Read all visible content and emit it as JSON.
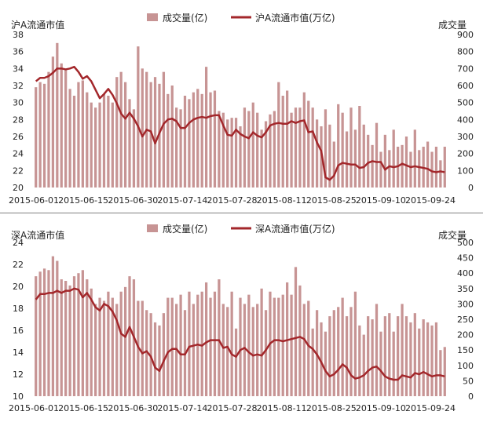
{
  "colors": {
    "bar": "#c79494",
    "line": "#a3272b",
    "divider": "#7f7f7f",
    "text": "#222222"
  },
  "chart_data": [
    {
      "type": "bar+line",
      "left_axis_title": "沪A流通市值",
      "right_axis_title": "成交量",
      "legend": {
        "bar": "成交量(亿)",
        "line": "沪A流通市值(万亿)"
      },
      "legend_position": "top-center",
      "ylim_left": [
        20,
        38
      ],
      "left_ticks": [
        "20",
        "22",
        "24",
        "26",
        "28",
        "30",
        "32",
        "34",
        "36",
        "38"
      ],
      "ylim_right": [
        0,
        900
      ],
      "right_ticks": [
        "0",
        "100",
        "200",
        "300",
        "400",
        "500",
        "600",
        "700",
        "800",
        "900"
      ],
      "x_ticks": [
        "2015-06-01",
        "2015-06-15",
        "2015-06-30",
        "2015-07-14",
        "2015-07-28",
        "2015-08-11",
        "2015-08-25",
        "2015-09-10",
        "2015-09-24"
      ],
      "bar_values": [
        590,
        620,
        610,
        680,
        770,
        850,
        730,
        690,
        580,
        540,
        620,
        630,
        560,
        500,
        470,
        500,
        550,
        540,
        500,
        650,
        680,
        620,
        520,
        460,
        830,
        700,
        680,
        620,
        650,
        610,
        680,
        550,
        600,
        470,
        460,
        540,
        520,
        560,
        580,
        550,
        710,
        560,
        570,
        450,
        440,
        400,
        410,
        410,
        360,
        470,
        450,
        500,
        440,
        340,
        390,
        430,
        450,
        620,
        540,
        570,
        440,
        470,
        470,
        560,
        510,
        470,
        400,
        360,
        460,
        370,
        270,
        490,
        440,
        330,
        470,
        340,
        480,
        370,
        310,
        250,
        380,
        210,
        310,
        220,
        340,
        240,
        250,
        300,
        210,
        340,
        220,
        240,
        270,
        210,
        240,
        160,
        240
      ],
      "line_values": [
        32.5,
        32.9,
        32.9,
        33.1,
        33.5,
        34.0,
        34.0,
        33.9,
        34.0,
        34.2,
        33.6,
        32.8,
        33.1,
        32.5,
        31.5,
        30.5,
        31.0,
        31.6,
        30.9,
        29.9,
        28.7,
        28.1,
        28.8,
        28.1,
        27.2,
        26.0,
        26.8,
        26.6,
        25.2,
        26.4,
        27.5,
        28.0,
        28.1,
        27.8,
        27.0,
        27.0,
        27.6,
        28.0,
        28.2,
        28.3,
        28.2,
        28.4,
        28.5,
        28.5,
        27.3,
        26.2,
        26.1,
        26.8,
        26.3,
        26.0,
        25.8,
        26.5,
        26.1,
        25.9,
        26.5,
        27.3,
        27.5,
        27.6,
        27.5,
        27.5,
        27.8,
        27.6,
        27.8,
        27.9,
        26.5,
        26.6,
        25.3,
        24.3,
        21.2,
        20.9,
        21.4,
        22.6,
        22.9,
        22.8,
        22.7,
        22.7,
        22.3,
        22.4,
        22.9,
        23.1,
        23.0,
        23.0,
        22.1,
        22.5,
        22.4,
        22.5,
        22.8,
        22.6,
        22.4,
        22.5,
        22.4,
        22.3,
        22.2,
        21.9,
        21.8,
        21.9,
        21.8
      ]
    },
    {
      "type": "bar+line",
      "left_axis_title": "深A流通市值",
      "right_axis_title": "成交量",
      "legend": {
        "bar": "成交量(亿)",
        "line": "深A流通市值(万亿)"
      },
      "legend_position": "top-center",
      "ylim_left": [
        10,
        24
      ],
      "left_ticks": [
        "10",
        "12",
        "14",
        "16",
        "18",
        "20",
        "22",
        "24"
      ],
      "ylim_right": [
        0,
        500
      ],
      "right_ticks": [
        "0",
        "50",
        "100",
        "150",
        "200",
        "250",
        "300",
        "350",
        "400",
        "450",
        "500"
      ],
      "x_ticks": [
        "2015-06-01",
        "2015-06-15",
        "2015-06-30",
        "2015-07-14",
        "2015-07-28",
        "2015-08-11",
        "2015-08-25",
        "2015-09-10",
        "2015-09-24"
      ],
      "bar_values": [
        390,
        405,
        415,
        410,
        455,
        440,
        380,
        375,
        360,
        390,
        400,
        410,
        380,
        350,
        300,
        320,
        310,
        340,
        320,
        300,
        340,
        355,
        390,
        380,
        310,
        310,
        280,
        270,
        240,
        230,
        270,
        320,
        320,
        300,
        330,
        280,
        340,
        300,
        330,
        340,
        370,
        320,
        340,
        380,
        300,
        290,
        340,
        220,
        320,
        300,
        330,
        290,
        300,
        350,
        280,
        340,
        320,
        320,
        330,
        370,
        330,
        420,
        360,
        300,
        310,
        220,
        280,
        240,
        210,
        260,
        280,
        290,
        320,
        260,
        290,
        340,
        230,
        200,
        260,
        250,
        300,
        210,
        260,
        270,
        210,
        260,
        300,
        260,
        240,
        270,
        220,
        250,
        240,
        230,
        240,
        150,
        160
      ],
      "line_values": [
        18.8,
        19.3,
        19.3,
        19.4,
        19.4,
        19.6,
        19.4,
        19.6,
        19.6,
        19.8,
        19.7,
        19.0,
        19.4,
        18.8,
        18.1,
        17.8,
        18.4,
        18.2,
        17.7,
        16.9,
        15.7,
        15.4,
        16.3,
        15.4,
        14.5,
        13.9,
        14.1,
        13.6,
        12.6,
        12.3,
        13.2,
        14.0,
        14.3,
        14.3,
        13.8,
        13.8,
        14.5,
        14.6,
        14.7,
        14.6,
        14.9,
        15.1,
        15.1,
        15.1,
        14.4,
        14.5,
        13.8,
        13.6,
        14.2,
        14.4,
        14.0,
        13.7,
        13.8,
        13.7,
        14.2,
        14.8,
        15.1,
        15.1,
        15.0,
        15.1,
        15.2,
        15.3,
        15.4,
        15.2,
        14.6,
        14.3,
        13.8,
        13.1,
        12.3,
        11.8,
        12.0,
        12.4,
        12.9,
        12.6,
        11.9,
        11.6,
        11.7,
        11.9,
        12.3,
        12.6,
        12.7,
        12.3,
        11.8,
        11.6,
        11.5,
        11.5,
        11.9,
        11.8,
        11.7,
        12.1,
        12.0,
        12.2,
        12.0,
        11.8,
        11.9,
        11.9,
        11.8
      ]
    }
  ]
}
